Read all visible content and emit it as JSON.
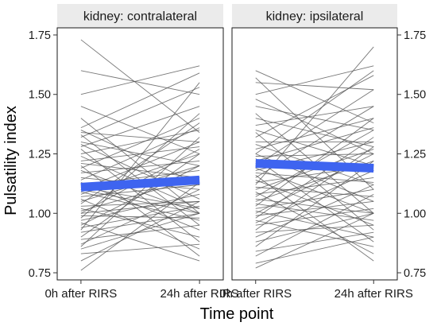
{
  "chart_data": {
    "type": "line",
    "ylabel": "Pulsatility index",
    "xlabel": "Time point",
    "categories": [
      "0h after RIRS",
      "24h after RIRS"
    ],
    "ylim": [
      0.72,
      1.78
    ],
    "yticks": [
      0.75,
      1.0,
      1.25,
      1.5,
      1.75
    ],
    "ytick_labels": [
      "0.75",
      "1.00",
      "1.25",
      "1.50",
      "1.75"
    ],
    "grid": false,
    "colors": {
      "individual": "#555555",
      "mean": "#3e64f0",
      "strip": "#ebebeb",
      "frame": "#1a1a1a"
    },
    "panels": [
      {
        "title": "kidney: contralateral",
        "mean": [
          1.11,
          1.14
        ],
        "pairs": [
          [
            1.73,
            1.34
          ],
          [
            1.6,
            1.5
          ],
          [
            1.5,
            1.62
          ],
          [
            1.45,
            1.25
          ],
          [
            1.4,
            1.0
          ],
          [
            1.36,
            1.59
          ],
          [
            1.35,
            1.12
          ],
          [
            1.34,
            1.3
          ],
          [
            1.33,
            0.95
          ],
          [
            1.32,
            1.53
          ],
          [
            1.3,
            1.2
          ],
          [
            1.29,
            1.06
          ],
          [
            1.28,
            1.45
          ],
          [
            1.27,
            0.88
          ],
          [
            1.25,
            1.35
          ],
          [
            1.24,
            1.02
          ],
          [
            1.22,
            1.28
          ],
          [
            1.21,
            1.15
          ],
          [
            1.2,
            0.82
          ],
          [
            1.19,
            1.4
          ],
          [
            1.18,
            1.0
          ],
          [
            1.17,
            1.22
          ],
          [
            1.15,
            1.1
          ],
          [
            1.14,
            1.36
          ],
          [
            1.13,
            0.93
          ],
          [
            1.12,
            1.18
          ],
          [
            1.11,
            1.02
          ],
          [
            1.1,
            1.3
          ],
          [
            1.09,
            0.97
          ],
          [
            1.08,
            1.25
          ],
          [
            1.07,
            1.12
          ],
          [
            1.06,
            0.85
          ],
          [
            1.05,
            1.2
          ],
          [
            1.04,
            1.38
          ],
          [
            1.03,
            1.05
          ],
          [
            1.02,
            0.9
          ],
          [
            1.01,
            1.15
          ],
          [
            1.0,
            1.27
          ],
          [
            0.99,
            0.98
          ],
          [
            0.98,
            1.42
          ],
          [
            0.97,
            1.08
          ],
          [
            0.96,
            0.8
          ],
          [
            0.95,
            1.2
          ],
          [
            0.94,
            1.03
          ],
          [
            0.93,
            1.55
          ],
          [
            0.92,
            1.0
          ],
          [
            0.9,
            1.25
          ],
          [
            0.89,
            0.95
          ],
          [
            0.87,
            1.1
          ],
          [
            0.86,
            1.32
          ],
          [
            0.85,
            1.0
          ],
          [
            0.83,
            0.87
          ],
          [
            0.8,
            1.05
          ],
          [
            0.76,
            1.13
          ],
          [
            1.1,
            1.0
          ],
          [
            1.0,
            1.05
          ]
        ]
      },
      {
        "title": "kidney: ipsilateral",
        "mean": [
          1.21,
          1.19
        ],
        "pairs": [
          [
            1.6,
            1.38
          ],
          [
            1.57,
            1.1
          ],
          [
            1.55,
            1.52
          ],
          [
            1.5,
            1.62
          ],
          [
            1.45,
            1.35
          ],
          [
            1.42,
            1.0
          ],
          [
            1.4,
            1.28
          ],
          [
            1.37,
            1.45
          ],
          [
            1.35,
            1.2
          ],
          [
            1.34,
            0.93
          ],
          [
            1.32,
            1.58
          ],
          [
            1.3,
            1.3
          ],
          [
            1.29,
            1.12
          ],
          [
            1.27,
            1.4
          ],
          [
            1.25,
            1.05
          ],
          [
            1.24,
            1.25
          ],
          [
            1.23,
            0.88
          ],
          [
            1.22,
            1.36
          ],
          [
            1.21,
            1.18
          ],
          [
            1.2,
            1.52
          ],
          [
            1.19,
            1.0
          ],
          [
            1.18,
            1.3
          ],
          [
            1.17,
            1.13
          ],
          [
            1.15,
            1.45
          ],
          [
            1.14,
            0.95
          ],
          [
            1.13,
            1.2
          ],
          [
            1.12,
            1.7
          ],
          [
            1.11,
            1.07
          ],
          [
            1.1,
            1.27
          ],
          [
            1.09,
            0.83
          ],
          [
            1.08,
            1.15
          ],
          [
            1.07,
            1.35
          ],
          [
            1.06,
            1.0
          ],
          [
            1.05,
            1.22
          ],
          [
            1.04,
            0.97
          ],
          [
            1.03,
            1.4
          ],
          [
            1.02,
            1.1
          ],
          [
            1.01,
            0.9
          ],
          [
            1.0,
            1.25
          ],
          [
            0.99,
            1.05
          ],
          [
            0.98,
            1.32
          ],
          [
            0.97,
            0.86
          ],
          [
            0.96,
            1.18
          ],
          [
            0.95,
            1.02
          ],
          [
            0.93,
            1.28
          ],
          [
            0.92,
            0.95
          ],
          [
            0.9,
            1.12
          ],
          [
            0.88,
            1.0
          ],
          [
            0.86,
            1.22
          ],
          [
            0.84,
            0.92
          ],
          [
            0.82,
            1.08
          ],
          [
            0.79,
            0.9
          ],
          [
            0.77,
            1.0
          ],
          [
            1.25,
            1.6
          ],
          [
            1.16,
            0.8
          ],
          [
            1.48,
            1.25
          ]
        ]
      }
    ]
  }
}
